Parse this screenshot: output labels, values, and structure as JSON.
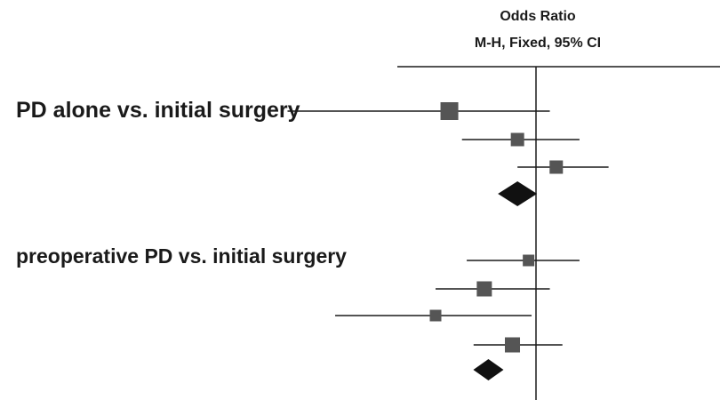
{
  "header": {
    "title": "Odds Ratio",
    "method": "M-H, Fixed, 95% CI"
  },
  "chart_data": {
    "type": "forest",
    "title": "Odds Ratio",
    "subtitle": "M-H, Fixed, 95% CI",
    "reference_line": 1,
    "axis_printed": false,
    "groups": [
      {
        "label": "PD alone vs. initial surgery",
        "studies": [
          {
            "or": 0.55,
            "ci": [
              0.18,
              1.1
            ],
            "weight": 0.5
          },
          {
            "or": 0.88,
            "ci": [
              0.6,
              1.35
            ],
            "weight": 0.25
          },
          {
            "or": 1.15,
            "ci": [
              0.88,
              1.65
            ],
            "weight": 0.25
          }
        ],
        "pooled": {
          "or": 0.88
        }
      },
      {
        "label": "preoperative PD vs. initial surgery",
        "studies": [
          {
            "or": 0.95,
            "ci": [
              0.62,
              1.35
            ],
            "weight": 0.15
          },
          {
            "or": 0.7,
            "ci": [
              0.5,
              1.1
            ],
            "weight": 0.35
          },
          {
            "or": 0.5,
            "ci": [
              0.25,
              0.97
            ],
            "weight": 0.15
          },
          {
            "or": 0.85,
            "ci": [
              0.65,
              1.2
            ],
            "weight": 0.35
          }
        ],
        "pooled": {
          "or": 0.72
        }
      }
    ]
  }
}
